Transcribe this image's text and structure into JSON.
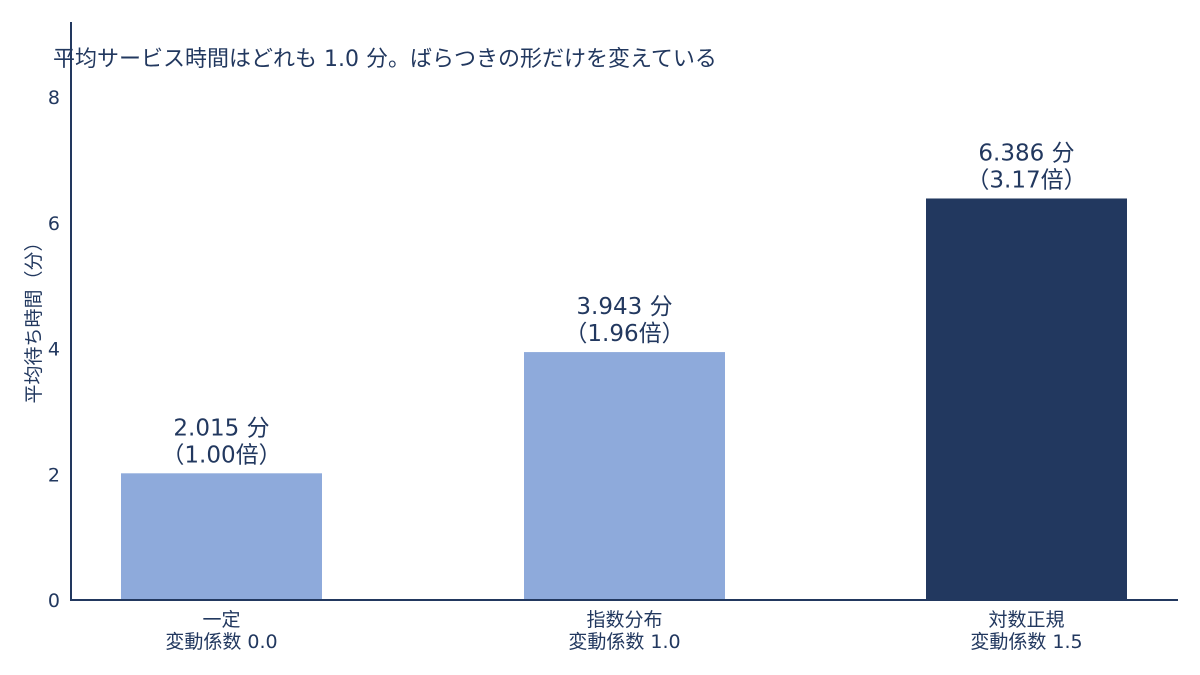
{
  "chart_data": {
    "type": "bar",
    "title": "平均サービス時間はどれも 1.0 分。ばらつきの形だけを変えている",
    "xlabel": "",
    "ylabel": "平均待ち時間（分）",
    "ylim": [
      0,
      8
    ],
    "yticks": [
      "0",
      "2",
      "4",
      "6",
      "8"
    ],
    "categories": [
      {
        "line1": "一定",
        "line2": "変動係数 0.0"
      },
      {
        "line1": "指数分布",
        "line2": "変動係数 1.0"
      },
      {
        "line1": "対数正規",
        "line2": "変動係数 1.5"
      }
    ],
    "values": [
      2.015,
      3.943,
      6.386
    ],
    "value_labels": [
      "2.015 分",
      "3.943 分",
      "6.386 分"
    ],
    "ratio_labels": [
      "（1.00倍）",
      "（1.96倍）",
      "（3.17倍）"
    ],
    "colors": [
      "#8eaadb",
      "#8eaadb",
      "#22385f"
    ],
    "axis_color": "#22385f",
    "grid": false,
    "legend": "none"
  }
}
